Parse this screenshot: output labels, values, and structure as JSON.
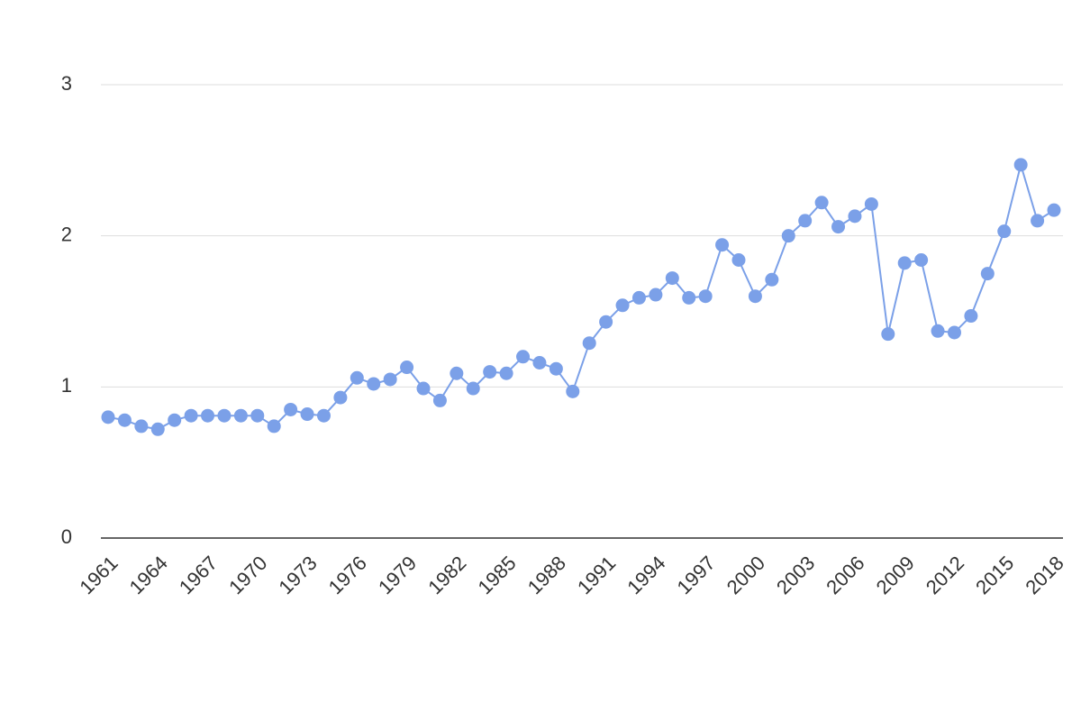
{
  "chart_data": {
    "type": "line",
    "x": [
      1961,
      1962,
      1963,
      1964,
      1965,
      1966,
      1967,
      1968,
      1969,
      1970,
      1971,
      1972,
      1973,
      1974,
      1975,
      1976,
      1977,
      1978,
      1979,
      1980,
      1981,
      1982,
      1983,
      1984,
      1985,
      1986,
      1987,
      1988,
      1989,
      1990,
      1991,
      1992,
      1993,
      1994,
      1995,
      1996,
      1997,
      1998,
      1999,
      2000,
      2001,
      2002,
      2003,
      2004,
      2005,
      2006,
      2007,
      2008,
      2009,
      2010,
      2011,
      2012,
      2013,
      2014,
      2015,
      2016,
      2017,
      2018
    ],
    "values": [
      0.8,
      0.78,
      0.74,
      0.72,
      0.78,
      0.81,
      0.81,
      0.81,
      0.81,
      0.81,
      0.74,
      0.85,
      0.82,
      0.81,
      0.93,
      1.06,
      1.02,
      1.05,
      1.13,
      0.99,
      0.91,
      1.09,
      0.99,
      1.1,
      1.09,
      1.2,
      1.16,
      1.12,
      0.97,
      1.29,
      1.43,
      1.54,
      1.59,
      1.61,
      1.72,
      1.59,
      1.6,
      1.94,
      1.84,
      1.6,
      1.71,
      2.0,
      2.1,
      2.22,
      2.06,
      2.13,
      2.21,
      1.35,
      1.82,
      1.84,
      1.37,
      1.36,
      1.47,
      1.75,
      2.03,
      2.47,
      2.1,
      2.17
    ],
    "color": "#7ba0e8",
    "xlim": [
      1961,
      2018
    ],
    "xticks": [
      1961,
      1964,
      1967,
      1970,
      1973,
      1976,
      1979,
      1982,
      1985,
      1988,
      1991,
      1994,
      1997,
      2000,
      2003,
      2006,
      2009,
      2012,
      2015,
      2018
    ],
    "ylim": [
      0,
      3
    ],
    "yticks": [
      0,
      1,
      2,
      3
    ],
    "grid": true
  }
}
